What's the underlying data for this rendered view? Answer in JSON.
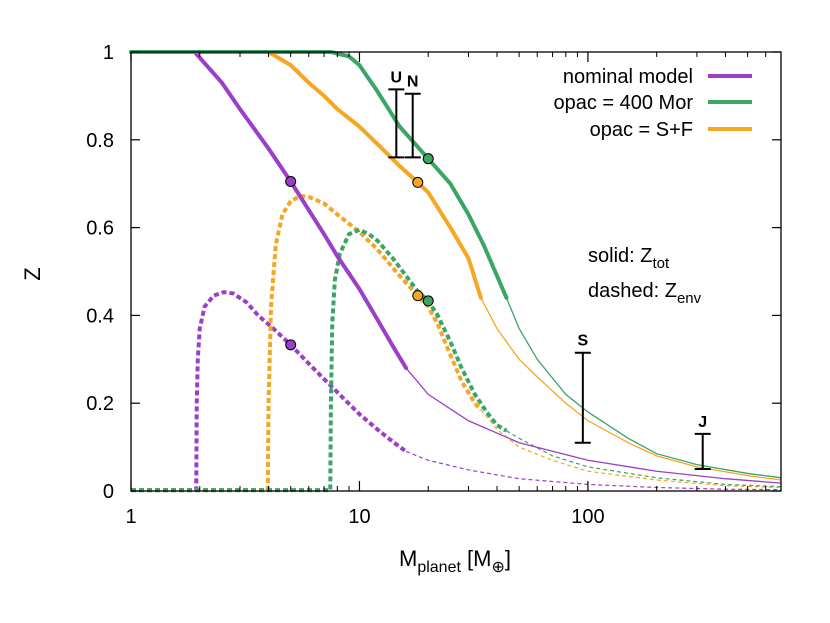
{
  "chart_data": {
    "type": "line",
    "xscale": "log",
    "xlim": [
      1,
      700
    ],
    "ylim": [
      0,
      1
    ],
    "xlabel": {
      "main": "M",
      "sub": "planet",
      "unit_open": " [M",
      "unit_sub": "⊕",
      "unit_close": "]"
    },
    "ylabel": "Z",
    "xticks": [
      {
        "v": 1,
        "label": "1"
      },
      {
        "v": 10,
        "label": "10"
      },
      {
        "v": 100,
        "label": "100"
      }
    ],
    "yticks": [
      {
        "v": 0,
        "label": "0"
      },
      {
        "v": 0.2,
        "label": "0.2"
      },
      {
        "v": 0.4,
        "label": "0.4"
      },
      {
        "v": 0.6,
        "label": "0.6"
      },
      {
        "v": 0.8,
        "label": "0.8"
      },
      {
        "v": 1,
        "label": "1"
      }
    ],
    "notes": {
      "solid_prefix": "solid: Z",
      "solid_sub": "tot",
      "dashed_prefix": "dashed: Z",
      "dashed_sub": "env"
    },
    "series": [
      {
        "name": "nominal model",
        "color": "#9b3fc8",
        "thick_until": 16,
        "ztot": [
          [
            1,
            1
          ],
          [
            1.9,
            1
          ],
          [
            2.5,
            0.93
          ],
          [
            3,
            0.87
          ],
          [
            4,
            0.78
          ],
          [
            5,
            0.705
          ],
          [
            6,
            0.64
          ],
          [
            7,
            0.585
          ],
          [
            8,
            0.535
          ],
          [
            10,
            0.46
          ],
          [
            12,
            0.39
          ],
          [
            14,
            0.33
          ],
          [
            16,
            0.28
          ],
          [
            20,
            0.22
          ],
          [
            30,
            0.16
          ],
          [
            50,
            0.11
          ],
          [
            100,
            0.07
          ],
          [
            200,
            0.045
          ],
          [
            400,
            0.028
          ],
          [
            700,
            0.018
          ]
        ],
        "zenv": [
          [
            1,
            0.002
          ],
          [
            1.93,
            0.002
          ],
          [
            1.94,
            0.2
          ],
          [
            1.96,
            0.3
          ],
          [
            2,
            0.37
          ],
          [
            2.1,
            0.42
          ],
          [
            2.3,
            0.445
          ],
          [
            2.55,
            0.453
          ],
          [
            2.8,
            0.45
          ],
          [
            3.2,
            0.43
          ],
          [
            3.6,
            0.4
          ],
          [
            4.2,
            0.37
          ],
          [
            5,
            0.333
          ],
          [
            6,
            0.29
          ],
          [
            7,
            0.255
          ],
          [
            8,
            0.225
          ],
          [
            10,
            0.175
          ],
          [
            12,
            0.14
          ],
          [
            14,
            0.112
          ],
          [
            16,
            0.09
          ],
          [
            20,
            0.07
          ],
          [
            30,
            0.048
          ],
          [
            50,
            0.028
          ],
          [
            100,
            0.015
          ],
          [
            200,
            0.008
          ],
          [
            400,
            0.004
          ],
          [
            700,
            0.003
          ]
        ],
        "markers": [
          {
            "x": 5,
            "y": 0.705
          },
          {
            "x": 5,
            "y": 0.333
          }
        ]
      },
      {
        "name": "opac = 400 Mor",
        "color": "#3aa565",
        "thick_until": 44,
        "ztot": [
          [
            1,
            1
          ],
          [
            7.5,
            1
          ],
          [
            9,
            0.99
          ],
          [
            10,
            0.97
          ],
          [
            12,
            0.91
          ],
          [
            15,
            0.83
          ],
          [
            20,
            0.757
          ],
          [
            25,
            0.7
          ],
          [
            30,
            0.63
          ],
          [
            35,
            0.56
          ],
          [
            40,
            0.49
          ],
          [
            44,
            0.44
          ],
          [
            50,
            0.37
          ],
          [
            60,
            0.3
          ],
          [
            80,
            0.22
          ],
          [
            100,
            0.18
          ],
          [
            150,
            0.12
          ],
          [
            200,
            0.085
          ],
          [
            300,
            0.06
          ],
          [
            500,
            0.04
          ],
          [
            700,
            0.03
          ]
        ],
        "zenv": [
          [
            1,
            0.002
          ],
          [
            7.45,
            0.002
          ],
          [
            7.5,
            0.2
          ],
          [
            7.6,
            0.38
          ],
          [
            7.8,
            0.48
          ],
          [
            8.2,
            0.54
          ],
          [
            9,
            0.585
          ],
          [
            10,
            0.595
          ],
          [
            11,
            0.585
          ],
          [
            12,
            0.57
          ],
          [
            14,
            0.53
          ],
          [
            16,
            0.49
          ],
          [
            18,
            0.455
          ],
          [
            20,
            0.433
          ],
          [
            22,
            0.4
          ],
          [
            25,
            0.34
          ],
          [
            28,
            0.28
          ],
          [
            32,
            0.22
          ],
          [
            36,
            0.18
          ],
          [
            40,
            0.15
          ],
          [
            50,
            0.12
          ],
          [
            70,
            0.08
          ],
          [
            100,
            0.055
          ],
          [
            200,
            0.03
          ],
          [
            400,
            0.015
          ],
          [
            700,
            0.01
          ]
        ],
        "markers": [
          {
            "x": 20,
            "y": 0.757
          },
          {
            "x": 20,
            "y": 0.433
          }
        ]
      },
      {
        "name": "opac = S+F",
        "color": "#f5a623",
        "thick_until": 34,
        "ztot": [
          [
            1,
            1
          ],
          [
            4,
            1
          ],
          [
            5,
            0.97
          ],
          [
            6,
            0.93
          ],
          [
            7,
            0.9
          ],
          [
            8,
            0.87
          ],
          [
            10,
            0.83
          ],
          [
            12,
            0.79
          ],
          [
            15,
            0.74
          ],
          [
            18,
            0.703
          ],
          [
            20,
            0.68
          ],
          [
            25,
            0.6
          ],
          [
            30,
            0.53
          ],
          [
            34,
            0.44
          ],
          [
            40,
            0.37
          ],
          [
            50,
            0.3
          ],
          [
            60,
            0.26
          ],
          [
            80,
            0.2
          ],
          [
            100,
            0.16
          ],
          [
            150,
            0.11
          ],
          [
            200,
            0.08
          ],
          [
            300,
            0.055
          ],
          [
            500,
            0.035
          ],
          [
            700,
            0.025
          ]
        ],
        "zenv": [
          [
            1,
            0.002
          ],
          [
            3.97,
            0.002
          ],
          [
            4,
            0.2
          ],
          [
            4.1,
            0.42
          ],
          [
            4.3,
            0.56
          ],
          [
            4.6,
            0.63
          ],
          [
            5,
            0.66
          ],
          [
            5.5,
            0.672
          ],
          [
            6,
            0.67
          ],
          [
            7,
            0.655
          ],
          [
            8,
            0.63
          ],
          [
            10,
            0.59
          ],
          [
            12,
            0.55
          ],
          [
            15,
            0.49
          ],
          [
            18,
            0.445
          ],
          [
            20,
            0.42
          ],
          [
            22,
            0.38
          ],
          [
            25,
            0.31
          ],
          [
            28,
            0.25
          ],
          [
            32,
            0.2
          ],
          [
            36,
            0.17
          ],
          [
            40,
            0.14
          ],
          [
            50,
            0.1
          ],
          [
            70,
            0.07
          ],
          [
            100,
            0.045
          ],
          [
            200,
            0.025
          ],
          [
            400,
            0.012
          ],
          [
            700,
            0.008
          ]
        ],
        "markers": [
          {
            "x": 18,
            "y": 0.703
          },
          {
            "x": 18,
            "y": 0.445
          }
        ]
      }
    ],
    "planets": [
      {
        "label": "U",
        "x": 14.5,
        "ylo": 0.76,
        "yhi": 0.915
      },
      {
        "label": "N",
        "x": 17.1,
        "ylo": 0.76,
        "yhi": 0.905
      },
      {
        "label": "S",
        "x": 95,
        "ylo": 0.11,
        "yhi": 0.315
      },
      {
        "label": "J",
        "x": 318,
        "ylo": 0.05,
        "yhi": 0.13
      }
    ]
  }
}
